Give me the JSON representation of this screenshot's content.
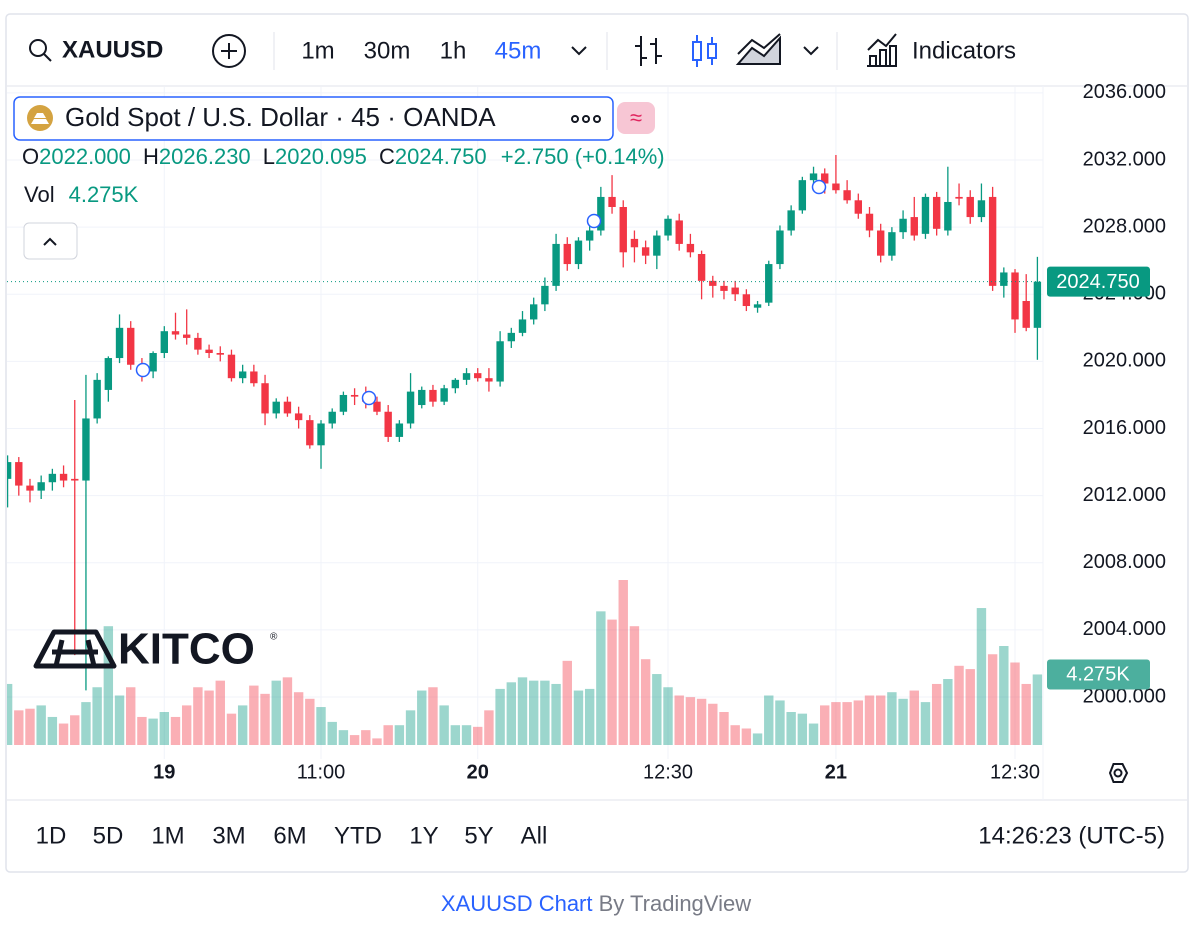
{
  "toolbar": {
    "symbol": "XAUUSD",
    "intervals": [
      {
        "label": "1m"
      },
      {
        "label": "30m"
      },
      {
        "label": "1h"
      },
      {
        "label": "45m",
        "active": true
      }
    ],
    "indicators": "Indicators"
  },
  "legend": {
    "title": "Gold Spot / U.S. Dollar · 45 · OANDA",
    "open_key": "O",
    "open": "2022.000",
    "high_key": "H",
    "high": "2026.230",
    "low_key": "L",
    "low": "2020.095",
    "close_key": "C",
    "close": "2024.750",
    "change": "+2.750 (+0.14%)",
    "vol_key": "Vol",
    "vol": "4.275K"
  },
  "watermark": "KITCO",
  "chart_data": {
    "type": "candlestick",
    "up_color": "#089981",
    "down_color": "#f23645",
    "grid": true,
    "categories": [
      null,
      null,
      null,
      null,
      null,
      null,
      null,
      null,
      null,
      null,
      null,
      null,
      null,
      null,
      "19",
      null,
      null,
      null,
      null,
      null,
      null,
      null,
      null,
      null,
      null,
      null,
      null,
      null,
      "11:00",
      null,
      null,
      null,
      null,
      null,
      null,
      null,
      null,
      null,
      null,
      null,
      null,
      null,
      "20",
      null,
      null,
      null,
      null,
      null,
      null,
      null,
      null,
      null,
      null,
      null,
      null,
      null,
      null,
      null,
      null,
      "12:30",
      null,
      null,
      null,
      null,
      null,
      null,
      null,
      null,
      null,
      null,
      null,
      null,
      null,
      null,
      "21",
      null,
      null,
      null,
      null,
      null,
      null,
      null,
      null,
      null,
      null,
      null,
      null,
      null,
      null,
      null,
      "12:30",
      null,
      null
    ],
    "values": [
      [
        2013.0,
        2014.4,
        2011.3,
        2014.0
      ],
      [
        2014.0,
        2014.3,
        2012.0,
        2012.6
      ],
      [
        2012.6,
        2013.0,
        2011.6,
        2012.3
      ],
      [
        2012.3,
        2013.2,
        2011.8,
        2012.8
      ],
      [
        2012.8,
        2013.6,
        2012.3,
        2013.3
      ],
      [
        2013.3,
        2013.8,
        2012.5,
        2012.9
      ],
      [
        2013.0,
        2017.7,
        2002.5,
        2012.9
      ],
      [
        2012.9,
        2019.2,
        2000.4,
        2016.6
      ],
      [
        2016.6,
        2019.3,
        2016.3,
        2018.9
      ],
      [
        2018.3,
        2020.3,
        2017.6,
        2020.2
      ],
      [
        2020.2,
        2022.8,
        2019.9,
        2022.0
      ],
      [
        2022.0,
        2022.4,
        2019.5,
        2019.8
      ],
      [
        2019.8,
        2020.2,
        2018.8,
        2019.4
      ],
      [
        2019.4,
        2020.6,
        2019.0,
        2020.5
      ],
      [
        2020.5,
        2022.1,
        2020.2,
        2021.8
      ],
      [
        2021.8,
        2022.9,
        2021.3,
        2021.6
      ],
      [
        2021.6,
        2023.1,
        2021.0,
        2021.4
      ],
      [
        2021.4,
        2021.7,
        2020.4,
        2020.7
      ],
      [
        2020.7,
        2021.0,
        2020.2,
        2020.5
      ],
      [
        2020.5,
        2020.9,
        2020.0,
        2020.4
      ],
      [
        2020.4,
        2020.7,
        2018.8,
        2019.0
      ],
      [
        2019.0,
        2019.8,
        2018.7,
        2019.4
      ],
      [
        2019.4,
        2019.8,
        2018.5,
        2018.7
      ],
      [
        2018.7,
        2019.2,
        2016.2,
        2016.9
      ],
      [
        2016.9,
        2017.8,
        2016.6,
        2017.6
      ],
      [
        2017.6,
        2017.9,
        2016.7,
        2016.9
      ],
      [
        2016.9,
        2017.3,
        2016.0,
        2016.5
      ],
      [
        2016.5,
        2016.8,
        2014.8,
        2015.0
      ],
      [
        2015.0,
        2016.5,
        2013.6,
        2016.3
      ],
      [
        2016.3,
        2017.2,
        2016.0,
        2017.0
      ],
      [
        2017.0,
        2018.2,
        2016.8,
        2018.0
      ],
      [
        2018.0,
        2018.4,
        2017.4,
        2017.9
      ],
      [
        2017.9,
        2018.5,
        2017.2,
        2017.6
      ],
      [
        2017.6,
        2017.9,
        2016.8,
        2017.0
      ],
      [
        2017.0,
        2017.4,
        2015.2,
        2015.5
      ],
      [
        2015.5,
        2016.5,
        2015.2,
        2016.3
      ],
      [
        2016.3,
        2019.3,
        2016.0,
        2018.2
      ],
      [
        2017.4,
        2018.5,
        2017.2,
        2018.3
      ],
      [
        2018.3,
        2018.6,
        2017.3,
        2017.6
      ],
      [
        2017.6,
        2018.6,
        2017.4,
        2018.4
      ],
      [
        2018.4,
        2019.0,
        2018.1,
        2018.9
      ],
      [
        2018.9,
        2019.6,
        2018.6,
        2019.3
      ],
      [
        2019.3,
        2019.6,
        2018.8,
        2019.0
      ],
      [
        2019.0,
        2019.6,
        2018.2,
        2018.8
      ],
      [
        2018.8,
        2021.8,
        2018.5,
        2021.2
      ],
      [
        2021.2,
        2022.0,
        2020.8,
        2021.7
      ],
      [
        2021.7,
        2023.0,
        2021.5,
        2022.5
      ],
      [
        2022.5,
        2023.8,
        2022.2,
        2023.4
      ],
      [
        2023.4,
        2025.0,
        2023.0,
        2024.5
      ],
      [
        2024.5,
        2027.6,
        2024.2,
        2027.0
      ],
      [
        2027.0,
        2027.4,
        2025.4,
        2025.8
      ],
      [
        2025.8,
        2027.4,
        2025.5,
        2027.2
      ],
      [
        2027.2,
        2028.1,
        2026.6,
        2027.8
      ],
      [
        2027.8,
        2030.4,
        2027.5,
        2029.8
      ],
      [
        2029.8,
        2031.1,
        2028.8,
        2029.2
      ],
      [
        2029.2,
        2029.6,
        2025.6,
        2026.5
      ],
      [
        2027.3,
        2027.8,
        2025.9,
        2026.8
      ],
      [
        2026.8,
        2027.2,
        2025.8,
        2026.3
      ],
      [
        2026.3,
        2027.8,
        2025.5,
        2027.5
      ],
      [
        2027.5,
        2028.7,
        2027.2,
        2028.5
      ],
      [
        2028.4,
        2028.8,
        2026.6,
        2027.0
      ],
      [
        2027.0,
        2027.6,
        2026.2,
        2026.5
      ],
      [
        2026.4,
        2026.6,
        2023.7,
        2024.8
      ],
      [
        2024.8,
        2025.1,
        2023.8,
        2024.5
      ],
      [
        2024.5,
        2024.8,
        2023.7,
        2024.2
      ],
      [
        2024.4,
        2024.8,
        2023.6,
        2024.0
      ],
      [
        2024.0,
        2024.3,
        2023.0,
        2023.3
      ],
      [
        2023.2,
        2023.6,
        2022.9,
        2023.4
      ],
      [
        2023.5,
        2026.0,
        2023.3,
        2025.8
      ],
      [
        2025.8,
        2028.1,
        2025.5,
        2027.8
      ],
      [
        2027.8,
        2029.3,
        2027.5,
        2029.0
      ],
      [
        2029.0,
        2031.0,
        2028.8,
        2030.8
      ],
      [
        2030.8,
        2031.6,
        2030.4,
        2031.2
      ],
      [
        2031.2,
        2031.5,
        2030.0,
        2030.6
      ],
      [
        2030.6,
        2032.3,
        2030.0,
        2030.2
      ],
      [
        2030.2,
        2030.8,
        2029.4,
        2029.6
      ],
      [
        2029.6,
        2030.0,
        2028.5,
        2028.8
      ],
      [
        2028.8,
        2029.2,
        2027.4,
        2027.8
      ],
      [
        2027.8,
        2028.2,
        2025.9,
        2026.3
      ],
      [
        2026.3,
        2028.0,
        2026.0,
        2027.7
      ],
      [
        2027.7,
        2029.0,
        2027.3,
        2028.5
      ],
      [
        2028.6,
        2029.8,
        2027.2,
        2027.5
      ],
      [
        2027.6,
        2030.0,
        2027.3,
        2029.8
      ],
      [
        2029.8,
        2030.1,
        2027.5,
        2027.9
      ],
      [
        2027.8,
        2031.6,
        2027.5,
        2029.5
      ],
      [
        2029.8,
        2030.6,
        2029.3,
        2029.7
      ],
      [
        2029.8,
        2030.2,
        2028.2,
        2028.6
      ],
      [
        2028.6,
        2030.6,
        2028.3,
        2029.6
      ],
      [
        2029.8,
        2030.4,
        2024.2,
        2024.5
      ],
      [
        2024.5,
        2025.6,
        2023.8,
        2025.3
      ],
      [
        2025.3,
        2025.5,
        2021.7,
        2022.5
      ],
      [
        2023.6,
        2025.2,
        2021.8,
        2022.0
      ],
      [
        2022.0,
        2026.23,
        2020.095,
        2024.75
      ]
    ],
    "volume": [
      3.7,
      2.1,
      2.2,
      2.4,
      1.7,
      1.3,
      1.8,
      2.6,
      3.5,
      7.2,
      3.0,
      3.5,
      1.7,
      1.6,
      2.0,
      1.7,
      2.4,
      3.5,
      3.3,
      3.9,
      1.9,
      2.4,
      3.6,
      3.1,
      3.9,
      4.1,
      3.2,
      2.8,
      2.3,
      1.4,
      0.9,
      0.6,
      0.9,
      0.4,
      1.2,
      1.2,
      2.1,
      3.3,
      3.5,
      2.4,
      1.2,
      1.2,
      1.1,
      2.1,
      3.4,
      3.8,
      4.1,
      3.9,
      3.9,
      3.7,
      5.1,
      3.3,
      3.4,
      8.1,
      7.6,
      10.0,
      7.2,
      5.2,
      4.3,
      3.5,
      3.0,
      2.9,
      2.8,
      2.5,
      2.0,
      1.2,
      1.0,
      0.7,
      3.0,
      2.7,
      2.0,
      1.9,
      1.3,
      2.4,
      2.6,
      2.6,
      2.7,
      3.0,
      3.0,
      3.2,
      2.8,
      3.3,
      2.6,
      3.7,
      4.0,
      4.8,
      4.6,
      8.3,
      5.5,
      6.0,
      5.0,
      3.7,
      4.275
    ],
    "close_label": "2024.750",
    "volume_label": "4.275K",
    "ylim": [
      1997.1,
      2036.5
    ],
    "yticks": [
      {
        "value": 2000,
        "label": "2000.000"
      },
      {
        "value": 2004,
        "label": "2004.000"
      },
      {
        "value": 2008,
        "label": "2008.000"
      },
      {
        "value": 2012,
        "label": "2012.000"
      },
      {
        "value": 2016,
        "label": "2016.000"
      },
      {
        "value": 2020,
        "label": "2020.000"
      },
      {
        "value": 2024,
        "label": "2024.000"
      },
      {
        "value": 2028,
        "label": "2028.000"
      },
      {
        "value": 2032,
        "label": "2032.000"
      },
      {
        "value": 2036,
        "label": "2036.000"
      }
    ]
  },
  "ranges": [
    "1D",
    "5D",
    "1M",
    "3M",
    "6M",
    "YTD",
    "1Y",
    "5Y",
    "All"
  ],
  "clock": "14:26:23 (UTC-5)",
  "footer": {
    "link": "XAUUSD Chart",
    "by": "By TradingView"
  }
}
